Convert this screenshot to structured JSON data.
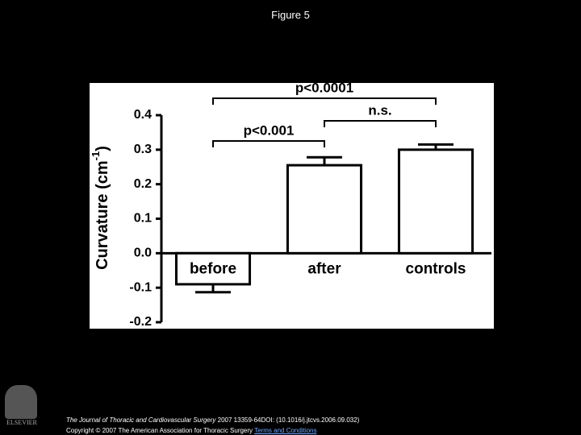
{
  "page_title": "Figure 5",
  "chart_data": {
    "type": "bar",
    "y_label": {
      "text": "Curvature (cm",
      "superscript": "-1",
      "suffix": ")"
    },
    "categories": [
      "before",
      "after",
      "controls"
    ],
    "values": [
      -0.09,
      0.255,
      0.3
    ],
    "errors": [
      0.023,
      0.023,
      0.015
    ],
    "color": "#ffffff",
    "ylim": [
      -0.2,
      0.4
    ],
    "yticks": [
      -0.2,
      -0.1,
      {
        "value": 0,
        "label": "0.0"
      },
      0.1,
      0.2,
      0.3,
      0.4
    ],
    "annotations": [
      "p<0.0001",
      "n.s.",
      "p<0.001"
    ]
  },
  "footer": {
    "journal": "The Journal of Thoracic and Cardiovascular Surgery",
    "citation": "2007 13359-64DOI: (10.1016/j.jtcvs.2006.09.032)",
    "copyright": "Copyright © 2007 The American Association for Thoracic Surgery",
    "link": "Terms and Conditions",
    "logo": "ELSEVIER"
  }
}
